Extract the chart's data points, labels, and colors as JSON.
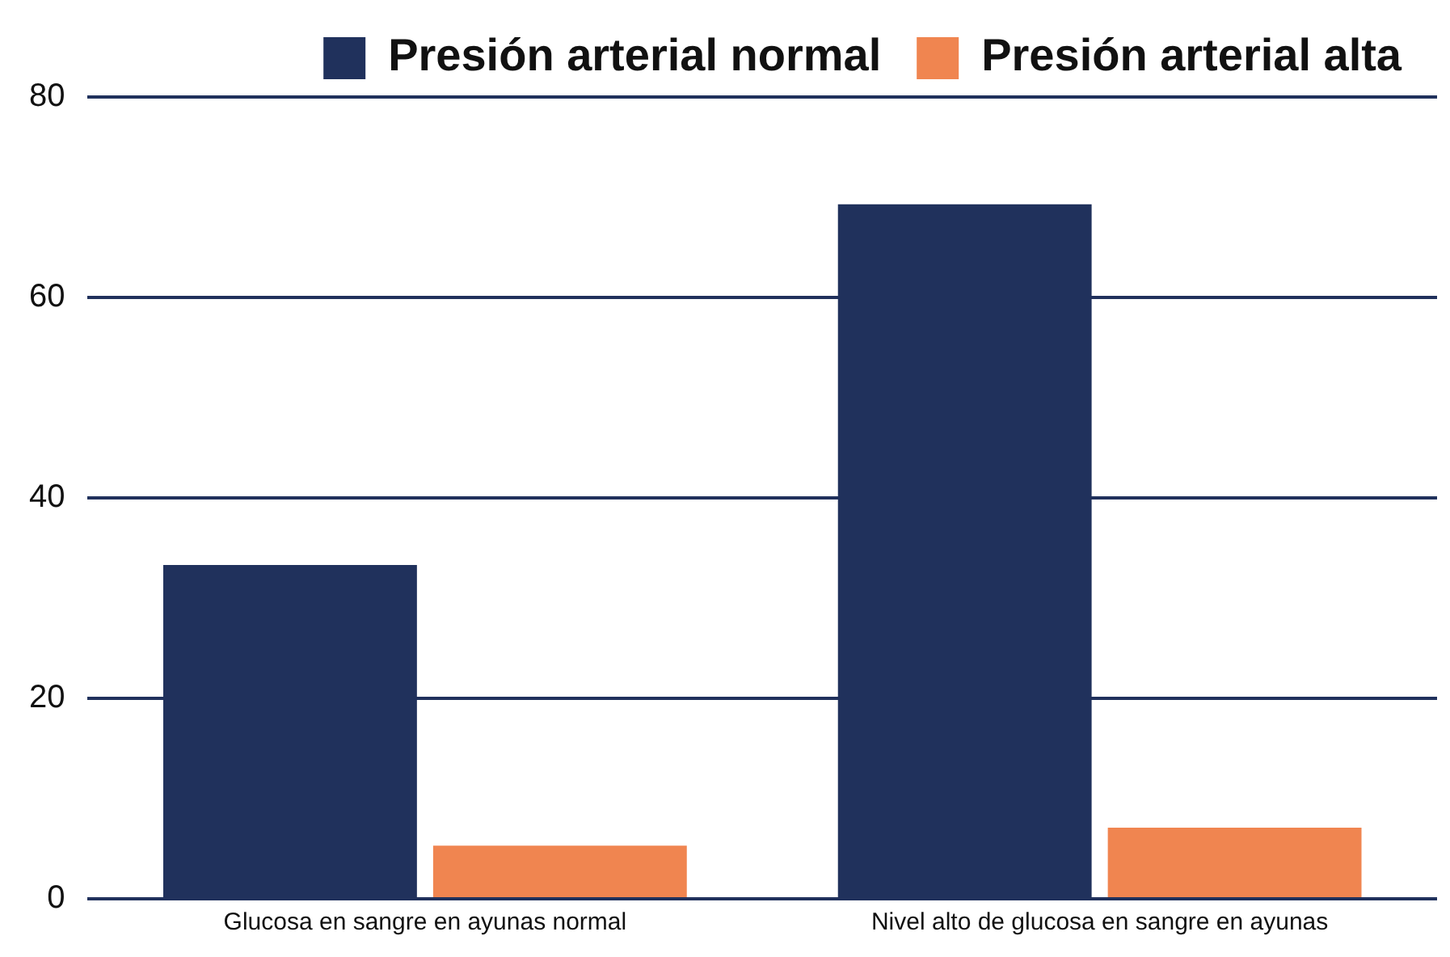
{
  "chart_data": {
    "type": "bar",
    "categories": [
      "Glucosa en sangre en ayunas normal",
      "Nivel alto de glucosa en sangre en ayunas"
    ],
    "series": [
      {
        "name": "Presión arterial normal",
        "color": "#20315c",
        "values": [
          33.3,
          69.3
        ]
      },
      {
        "name": "Presión arterial alta",
        "color": "#f08550",
        "values": [
          5.3,
          7.1
        ]
      }
    ],
    "ylim": [
      0,
      80
    ],
    "yticks": [
      0,
      20,
      40,
      60,
      80
    ],
    "grid": "y",
    "legend": "top right"
  }
}
